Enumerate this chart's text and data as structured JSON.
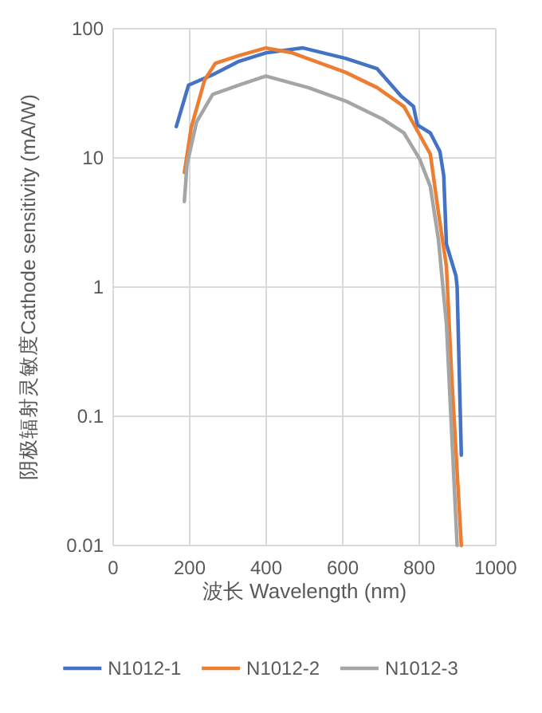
{
  "chart_data": {
    "type": "line",
    "xlabel": "波长 Wavelength (nm)",
    "ylabel": "阴极辐射灵敏度Cathode sensitivity (mA/W)",
    "xlim": [
      0,
      1000
    ],
    "xticks": [
      0,
      200,
      400,
      600,
      800,
      1000
    ],
    "ylim": [
      0.01,
      100
    ],
    "yticks": [
      0.01,
      0.1,
      1,
      10,
      100
    ],
    "log": "y",
    "grid": true,
    "legend": "bottom",
    "marker": "none",
    "series": [
      {
        "name": "N1012-1",
        "color": "#4472c4",
        "x": [
          165,
          197,
          260,
          329,
          399,
          496,
          607,
          690,
          753,
          785,
          795,
          829,
          854,
          864,
          871,
          896,
          899,
          910
        ],
        "values": [
          17.5,
          36.6,
          44,
          56,
          65,
          71,
          59,
          49,
          30,
          25,
          18,
          15.6,
          11.2,
          7.3,
          2.15,
          1.22,
          1.0,
          0.05
        ]
      },
      {
        "name": "N1012-2",
        "color": "#ed7d31",
        "x": [
          186,
          204,
          239,
          267,
          329,
          399,
          468,
          607,
          690,
          760,
          829,
          850,
          871,
          885,
          910
        ],
        "values": [
          7.7,
          17.2,
          40,
          54,
          62,
          71,
          65,
          46,
          35,
          25,
          10.7,
          3.8,
          1.45,
          0.2,
          0.01
        ]
      },
      {
        "name": "N1012-3",
        "color": "#a5a5a5",
        "x": [
          186,
          193,
          218,
          260,
          329,
          399,
          510,
          607,
          704,
          760,
          801,
          829,
          850,
          871,
          899
        ],
        "values": [
          4.6,
          8.9,
          19,
          31,
          36.6,
          43,
          35,
          27.6,
          20,
          15.6,
          9.8,
          6.0,
          2.35,
          0.52,
          0.01
        ]
      }
    ]
  }
}
